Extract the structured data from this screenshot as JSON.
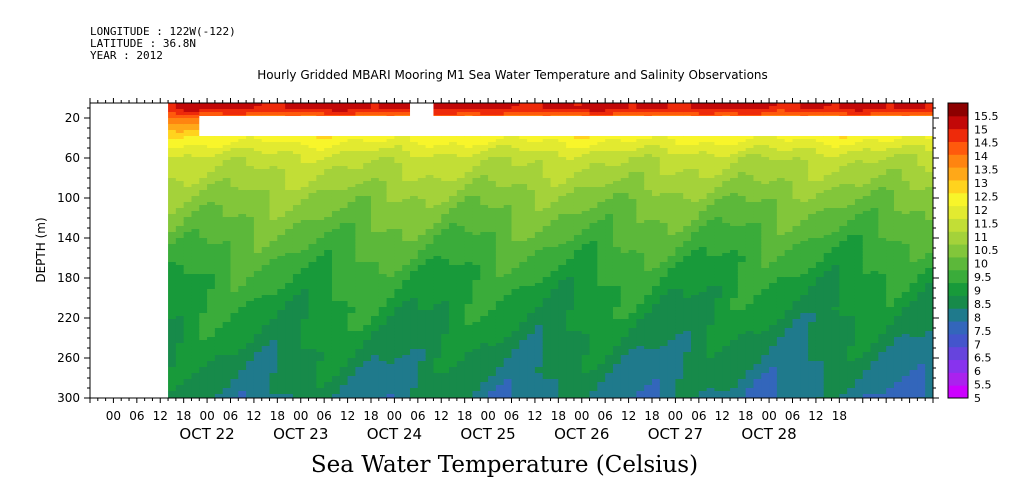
{
  "header": {
    "longitude": "LONGITUDE : 122W(-122)",
    "latitude": "LATITUDE : 36.8N",
    "year": "YEAR : 2012"
  },
  "footer_title": "Sea Water Temperature (Celsius)",
  "chart_data": {
    "type": "heatmap",
    "title": "Hourly Gridded MBARI Mooring M1 Sea Water Temperature and Salinity Observations",
    "xlabel": "",
    "ylabel": "DEPTH (m)",
    "x_hour_ticks": [
      "00",
      "06",
      "12",
      "18",
      "00",
      "06",
      "12",
      "18",
      "00",
      "06",
      "12",
      "18",
      "00",
      "06",
      "12",
      "18",
      "00",
      "06",
      "12",
      "18",
      "00",
      "06",
      "12",
      "18",
      "00",
      "06",
      "12",
      "18",
      "00",
      "06",
      "12",
      "18"
    ],
    "x_day_labels": [
      "OCT 22",
      "OCT 23",
      "OCT 24",
      "OCT 25",
      "OCT 26",
      "OCT 27",
      "OCT 28"
    ],
    "x_hours_range": [
      -24,
      192
    ],
    "y_ticks": [
      20,
      60,
      100,
      140,
      180,
      220,
      260,
      300
    ],
    "ylim": [
      300,
      5
    ],
    "colorbar": {
      "levels": [
        5,
        5.5,
        6,
        6.5,
        7,
        7.5,
        8,
        8.5,
        9,
        9.5,
        10,
        10.5,
        11,
        11.5,
        12,
        12.5,
        13,
        13.5,
        14,
        14.5,
        15,
        15.5
      ],
      "labels": [
        "15.5",
        "15",
        "14.5",
        "14",
        "13.5",
        "13",
        "12.5",
        "12",
        "11.5",
        "11",
        "10.5",
        "10",
        "9.5",
        "9",
        "8.5",
        "8",
        "7.5",
        "7",
        "6.5",
        "6",
        "5.5",
        "5"
      ],
      "colors": [
        "#cc00ff",
        "#aa22ee",
        "#8833ee",
        "#6644dd",
        "#4455cc",
        "#3366bb",
        "#1f7a8c",
        "#178a4a",
        "#189a3a",
        "#3aac3a",
        "#5cb83a",
        "#82c63a",
        "#a4d23a",
        "#c2de36",
        "#e2ea30",
        "#f8f52a",
        "#ffd31e",
        "#ffa818",
        "#ff8410",
        "#ff5a0c",
        "#ee2a0a",
        "#c20808",
        "#8c0000"
      ]
    },
    "description_profile": {
      "depth_m": [
        10,
        20,
        30,
        40,
        60,
        80,
        100,
        140,
        180,
        220,
        260,
        300
      ],
      "temperature_c": [
        15.1,
        13.8,
        13.0,
        12.2,
        11.2,
        10.8,
        10.3,
        9.6,
        9.0,
        8.6,
        8.2,
        7.8
      ]
    },
    "data_gaps": [
      {
        "depth_from": 5,
        "depth_to": 300,
        "x_from_hour": -24,
        "x_to_hour": -4
      },
      {
        "depth_from": 18,
        "depth_to": 38,
        "x_from_hour": 4,
        "x_to_hour": 192
      },
      {
        "depth_from": 5,
        "depth_to": 18,
        "x_from_hour": 58,
        "x_to_hour": 64
      }
    ]
  }
}
